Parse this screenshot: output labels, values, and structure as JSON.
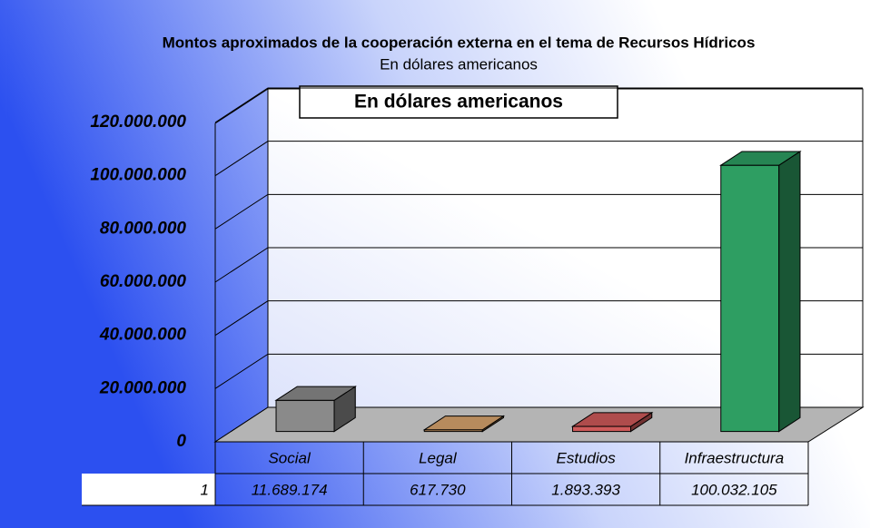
{
  "chart_data": {
    "type": "bar3d",
    "title": "Montos aproximados de la cooperación externa en el tema de Recursos Hídricos",
    "subtitle": "En dólares americanos",
    "annotation": "En dólares americanos",
    "categories": [
      "Social",
      "Legal",
      "Estudios",
      "Infraestructura"
    ],
    "series": [
      {
        "name": "1",
        "colors": [
          "#8a8a8a",
          "#d9a46e",
          "#cf5a5a",
          "#2e9e62"
        ],
        "values": [
          11689174,
          617730,
          1893393,
          100032105
        ],
        "value_labels": [
          "11.689.174",
          "617.730",
          "1.893.393",
          "100.032.105"
        ]
      }
    ],
    "ylim": [
      0,
      120000000
    ],
    "yticks": [
      0,
      {
        "value": 20000000,
        "label": "20.000.000"
      },
      {
        "value": 40000000,
        "label": "40.000.000"
      },
      {
        "value": 60000000,
        "label": "60.000.000"
      },
      {
        "value": 80000000,
        "label": "80.000.000"
      },
      {
        "value": 100000000,
        "label": "100.000.000"
      },
      {
        "value": 120000000,
        "label": "120.000.000"
      }
    ],
    "grid": true
  }
}
